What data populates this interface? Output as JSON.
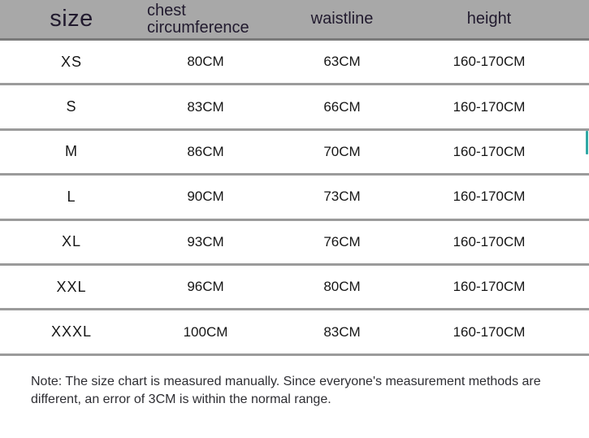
{
  "table": {
    "headers": [
      {
        "label": "size"
      },
      {
        "label": "chest circumference"
      },
      {
        "label": "waistline"
      },
      {
        "label": "height"
      }
    ],
    "rows": [
      {
        "size": "XS",
        "chest": "80CM",
        "waist": "63CM",
        "height": "160-170CM"
      },
      {
        "size": "S",
        "chest": "83CM",
        "waist": "66CM",
        "height": "160-170CM"
      },
      {
        "size": "M",
        "chest": "86CM",
        "waist": "70CM",
        "height": "160-170CM"
      },
      {
        "size": "L",
        "chest": "90CM",
        "waist": "73CM",
        "height": "160-170CM"
      },
      {
        "size": "XL",
        "chest": "93CM",
        "waist": "76CM",
        "height": "160-170CM"
      },
      {
        "size": "XXL",
        "chest": "96CM",
        "waist": "80CM",
        "height": "160-170CM"
      },
      {
        "size": "XXXL",
        "chest": "100CM",
        "waist": "83CM",
        "height": "160-170CM"
      }
    ]
  },
  "note": "Note: The size chart is measured manually. Since everyone's measurement methods are different, an error of 3CM is within the normal range.",
  "colors": {
    "header_bg": "#a8a8a8",
    "header_border": "#7a7a7a",
    "header_text": "#211a2e",
    "separator": "#9b9b9b",
    "scrollbar": "#2fa8a4"
  }
}
